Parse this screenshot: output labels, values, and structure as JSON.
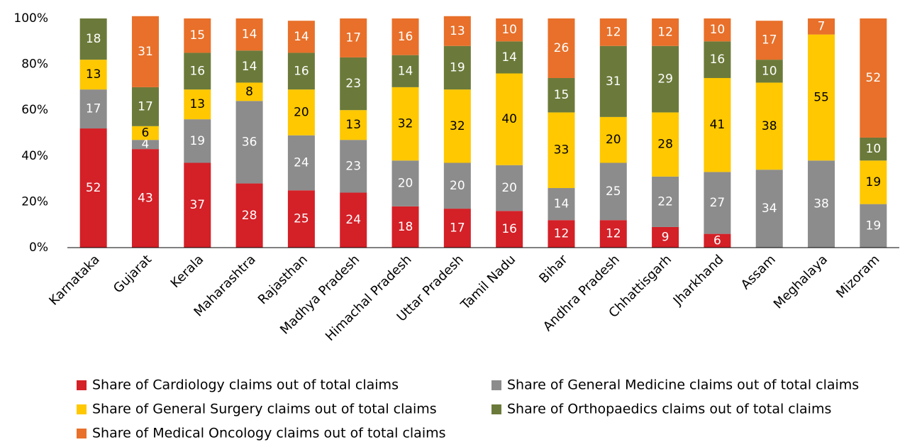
{
  "chart_data": {
    "type": "stacked_bar",
    "categories": [
      "Karnataka",
      "Gujarat",
      "Kerala",
      "Maharashtra",
      "Rajasthan",
      "Madhya Pradesh",
      "Himachal Pradesh",
      "Uttar Pradesh",
      "Tamil Nadu",
      "Bihar",
      "Andhra Pradesh",
      "Chhattisgarh",
      "Jharkhand",
      "Assam",
      "Meghalaya",
      "Mizoram"
    ],
    "series": [
      {
        "name": "Share of Cardiology claims out of total claims",
        "color": "#d42027",
        "values": [
          52,
          43,
          37,
          28,
          25,
          24,
          18,
          17,
          16,
          12,
          12,
          9,
          6,
          null,
          null,
          null
        ]
      },
      {
        "name": "Share of General Medicine claims out of total claims",
        "color": "#8c8c8c",
        "values": [
          17,
          4,
          19,
          36,
          24,
          23,
          20,
          20,
          20,
          14,
          25,
          22,
          27,
          34,
          38,
          19
        ]
      },
      {
        "name": "Share of General Surgery claims out of total claims",
        "color": "#ffc800",
        "values": [
          13,
          6,
          13,
          8,
          20,
          13,
          32,
          32,
          40,
          33,
          20,
          28,
          41,
          38,
          55,
          19
        ]
      },
      {
        "name": "Share of Orthopaedics claims out of total claims",
        "color": "#6b7a3a",
        "values": [
          18,
          17,
          16,
          14,
          16,
          23,
          14,
          19,
          14,
          15,
          31,
          29,
          16,
          10,
          null,
          10
        ]
      },
      {
        "name": "Share of Medical Oncology claims out of total claims",
        "color": "#e8702a",
        "values": [
          null,
          31,
          15,
          14,
          14,
          17,
          16,
          13,
          10,
          26,
          12,
          12,
          10,
          17,
          7,
          52
        ]
      }
    ],
    "ylim": [
      0,
      100
    ],
    "yticks": [
      {
        "value": 0,
        "label": "0%"
      },
      {
        "value": 20,
        "label": "20%"
      },
      {
        "value": 40,
        "label": "40%"
      },
      {
        "value": 60,
        "label": "60%"
      },
      {
        "value": 80,
        "label": "80%"
      },
      {
        "value": 100,
        "label": "100%"
      }
    ]
  }
}
